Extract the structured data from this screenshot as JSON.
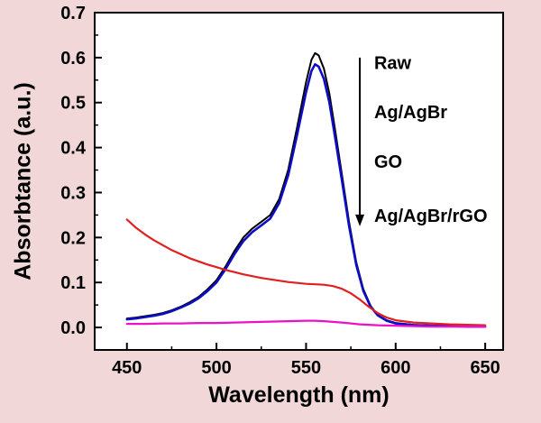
{
  "figure": {
    "background": "#f1d7d7",
    "plot_background": "#ffffff",
    "axis_color": "#000000"
  },
  "chart_data": {
    "type": "line",
    "title": "",
    "xlabel": "Wavelength (nm)",
    "ylabel": "Absorbtance (a.u.)",
    "xlim": [
      432,
      660
    ],
    "ylim": [
      -0.05,
      0.7
    ],
    "xticks": [
      450,
      500,
      550,
      600,
      650
    ],
    "yticks": [
      0.0,
      0.1,
      0.2,
      0.3,
      0.4,
      0.5,
      0.6,
      0.7
    ],
    "grid": false,
    "legend_position": "annotations inside right with downward arrow",
    "series": [
      {
        "name": "Raw",
        "color": "#000000",
        "width": 2,
        "x": [
          450,
          455,
          460,
          465,
          470,
          475,
          480,
          485,
          490,
          495,
          500,
          505,
          510,
          515,
          520,
          525,
          530,
          535,
          540,
          545,
          550,
          553,
          555,
          557,
          560,
          563,
          566,
          570,
          574,
          578,
          582,
          586,
          590,
          595,
          600,
          610,
          620,
          630,
          640,
          650
        ],
        "y": [
          0.02,
          0.022,
          0.025,
          0.028,
          0.032,
          0.038,
          0.046,
          0.056,
          0.068,
          0.085,
          0.105,
          0.135,
          0.17,
          0.2,
          0.22,
          0.235,
          0.25,
          0.285,
          0.35,
          0.445,
          0.545,
          0.595,
          0.61,
          0.605,
          0.575,
          0.52,
          0.445,
          0.34,
          0.235,
          0.145,
          0.085,
          0.048,
          0.028,
          0.016,
          0.01,
          0.006,
          0.004,
          0.003,
          0.002,
          0.002
        ]
      },
      {
        "name": "Ag/AgBr",
        "color": "#0d0dc8",
        "width": 2.6,
        "x": [
          450,
          455,
          460,
          465,
          470,
          475,
          480,
          485,
          490,
          495,
          500,
          505,
          510,
          515,
          520,
          525,
          530,
          535,
          540,
          545,
          550,
          553,
          555,
          557,
          560,
          563,
          566,
          570,
          574,
          578,
          582,
          586,
          590,
          595,
          600,
          610,
          620,
          630,
          640,
          650
        ],
        "y": [
          0.018,
          0.02,
          0.023,
          0.026,
          0.03,
          0.036,
          0.044,
          0.053,
          0.065,
          0.081,
          0.1,
          0.129,
          0.163,
          0.192,
          0.212,
          0.227,
          0.242,
          0.276,
          0.338,
          0.428,
          0.523,
          0.57,
          0.585,
          0.58,
          0.552,
          0.5,
          0.428,
          0.327,
          0.226,
          0.139,
          0.081,
          0.046,
          0.027,
          0.015,
          0.009,
          0.005,
          0.004,
          0.003,
          0.002,
          0.002
        ]
      },
      {
        "name": "GO",
        "color": "#e02020",
        "width": 2.2,
        "x": [
          450,
          455,
          460,
          465,
          470,
          475,
          480,
          485,
          490,
          495,
          500,
          505,
          510,
          515,
          520,
          525,
          530,
          535,
          540,
          545,
          550,
          555,
          560,
          565,
          570,
          575,
          580,
          585,
          590,
          595,
          600,
          610,
          620,
          630,
          640,
          650
        ],
        "y": [
          0.24,
          0.222,
          0.207,
          0.194,
          0.183,
          0.172,
          0.163,
          0.154,
          0.147,
          0.14,
          0.134,
          0.128,
          0.123,
          0.118,
          0.114,
          0.11,
          0.107,
          0.104,
          0.101,
          0.099,
          0.097,
          0.096,
          0.095,
          0.092,
          0.086,
          0.076,
          0.062,
          0.046,
          0.032,
          0.022,
          0.016,
          0.011,
          0.009,
          0.007,
          0.006,
          0.005
        ]
      },
      {
        "name": "Ag/AgBr/rGO",
        "color": "#ee10c8",
        "width": 2.2,
        "x": [
          450,
          460,
          470,
          480,
          490,
          500,
          510,
          520,
          530,
          540,
          550,
          555,
          560,
          570,
          580,
          590,
          600,
          610,
          620,
          630,
          640,
          650
        ],
        "y": [
          0.008,
          0.008,
          0.009,
          0.009,
          0.01,
          0.01,
          0.011,
          0.012,
          0.013,
          0.014,
          0.015,
          0.015,
          0.014,
          0.011,
          0.007,
          0.005,
          0.004,
          0.003,
          0.002,
          0.002,
          0.002,
          0.002
        ]
      }
    ],
    "annotations": [
      {
        "text": "Raw",
        "x": 588,
        "y": 0.575
      },
      {
        "text": "Ag/AgBr",
        "x": 588,
        "y": 0.465
      },
      {
        "text": "GO",
        "x": 588,
        "y": 0.355
      },
      {
        "text": "Ag/AgBr/rGO",
        "x": 588,
        "y": 0.235
      }
    ],
    "arrow": {
      "x": 580,
      "y_from": 0.6,
      "y_to": 0.225
    }
  }
}
